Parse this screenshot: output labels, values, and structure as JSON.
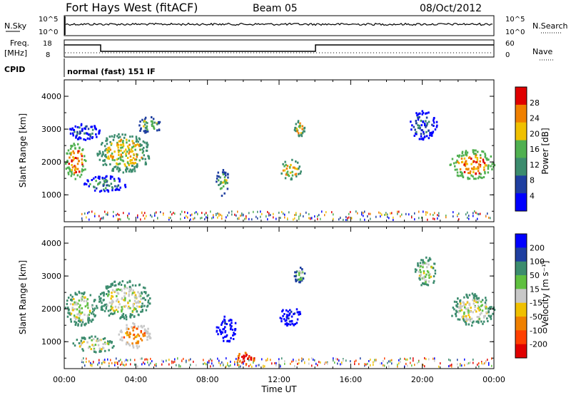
{
  "header": {
    "station": "Fort Hays West (fitACF)",
    "beam": "Beam 05",
    "date": "08/Oct/2012"
  },
  "noise_panel": {
    "left_label": "N.Sky",
    "right_label": "N.Search",
    "left_ticks": [
      "10^5",
      "10^0"
    ],
    "right_ticks": [
      "10^5",
      "10^0"
    ]
  },
  "freq_panel": {
    "left_label_1": "Freq.",
    "left_label_2": "[MHz]",
    "right_label": "Nave",
    "left_ticks": [
      "18",
      "8"
    ],
    "right_ticks": [
      "60",
      "0"
    ]
  },
  "cpid": {
    "label": "CPID",
    "value": "normal (fast) 151 IF"
  },
  "chart_data": [
    {
      "type": "heatmap",
      "name": "power",
      "ylabel": "Slant Range [km]",
      "y_ticks": [
        "1000",
        "2000",
        "3000",
        "4000"
      ],
      "colorbar_label": "Power [dB]",
      "colorbar_ticks": [
        "4",
        "8",
        "12",
        "16",
        "20",
        "24",
        "28"
      ],
      "colors": [
        "#0000ff",
        "#1f3fa0",
        "#3c8c6e",
        "#50b050",
        "#f0c000",
        "#f08000",
        "#e00000"
      ],
      "clusters": [
        {
          "t0": 0.0,
          "t1": 1.2,
          "r0": 1500,
          "r1": 2600,
          "level": 5
        },
        {
          "t0": 1.8,
          "t1": 4.8,
          "r0": 1700,
          "r1": 2900,
          "level": 4
        },
        {
          "t0": 4.0,
          "t1": 5.4,
          "r0": 2900,
          "r1": 3400,
          "level": 3
        },
        {
          "t0": 1.0,
          "t1": 3.5,
          "r0": 1100,
          "r1": 1600,
          "level": 2
        },
        {
          "t0": 8.4,
          "t1": 9.2,
          "r0": 1000,
          "r1": 1800,
          "level": 3
        },
        {
          "t0": 12.0,
          "t1": 13.2,
          "r0": 1500,
          "r1": 2100,
          "level": 4
        },
        {
          "t0": 12.8,
          "t1": 13.4,
          "r0": 2800,
          "r1": 3300,
          "level": 4
        },
        {
          "t0": 19.2,
          "t1": 20.8,
          "r0": 2700,
          "r1": 3600,
          "level": 1
        },
        {
          "t0": 21.5,
          "t1": 24.0,
          "r0": 1500,
          "r1": 2400,
          "level": 5
        },
        {
          "t0": 0.2,
          "t1": 2.0,
          "r0": 2700,
          "r1": 3200,
          "level": 1
        }
      ],
      "time_range": [
        0,
        24
      ],
      "range_range": [
        180,
        4500
      ]
    },
    {
      "type": "heatmap",
      "name": "velocity",
      "xlabel": "Time UT",
      "ylabel": "Slant Range [km]",
      "x_ticks": [
        "00:00",
        "04:00",
        "08:00",
        "12:00",
        "16:00",
        "20:00",
        "00:00"
      ],
      "y_ticks": [
        "1000",
        "2000",
        "3000",
        "4000"
      ],
      "colorbar_label": "Velocity [m s⁻¹]",
      "colorbar_ticks": [
        "200",
        "100",
        "50",
        "15",
        "-15",
        "-50",
        "-100",
        "-200"
      ],
      "colors": [
        "#0000ff",
        "#1f3fa0",
        "#3c8c6e",
        "#60c040",
        "#c8c8c8",
        "#f0c000",
        "#f08000",
        "#ff4000",
        "#e00000"
      ],
      "clusters": [
        {
          "t0": 0.0,
          "t1": 1.8,
          "r0": 1500,
          "r1": 2600,
          "level": 4
        },
        {
          "t0": 1.8,
          "t1": 4.8,
          "r0": 1700,
          "r1": 2900,
          "level": 4
        },
        {
          "t0": 3.0,
          "t1": 4.8,
          "r0": 800,
          "r1": 1600,
          "level": 6
        },
        {
          "t0": 0.4,
          "t1": 2.8,
          "r0": 700,
          "r1": 1200,
          "level": 4
        },
        {
          "t0": 8.4,
          "t1": 9.6,
          "r0": 1000,
          "r1": 1800,
          "level": 0
        },
        {
          "t0": 12.0,
          "t1": 13.2,
          "r0": 1500,
          "r1": 2100,
          "level": 0
        },
        {
          "t0": 12.8,
          "t1": 13.4,
          "r0": 2800,
          "r1": 3300,
          "level": 3
        },
        {
          "t0": 19.5,
          "t1": 20.8,
          "r0": 2700,
          "r1": 3600,
          "level": 4
        },
        {
          "t0": 21.5,
          "t1": 24.0,
          "r0": 1500,
          "r1": 2500,
          "level": 4
        },
        {
          "t0": 9.5,
          "t1": 10.6,
          "r0": 350,
          "r1": 700,
          "level": 8
        }
      ],
      "time_range": [
        0,
        24
      ],
      "range_range": [
        180,
        4500
      ]
    }
  ]
}
